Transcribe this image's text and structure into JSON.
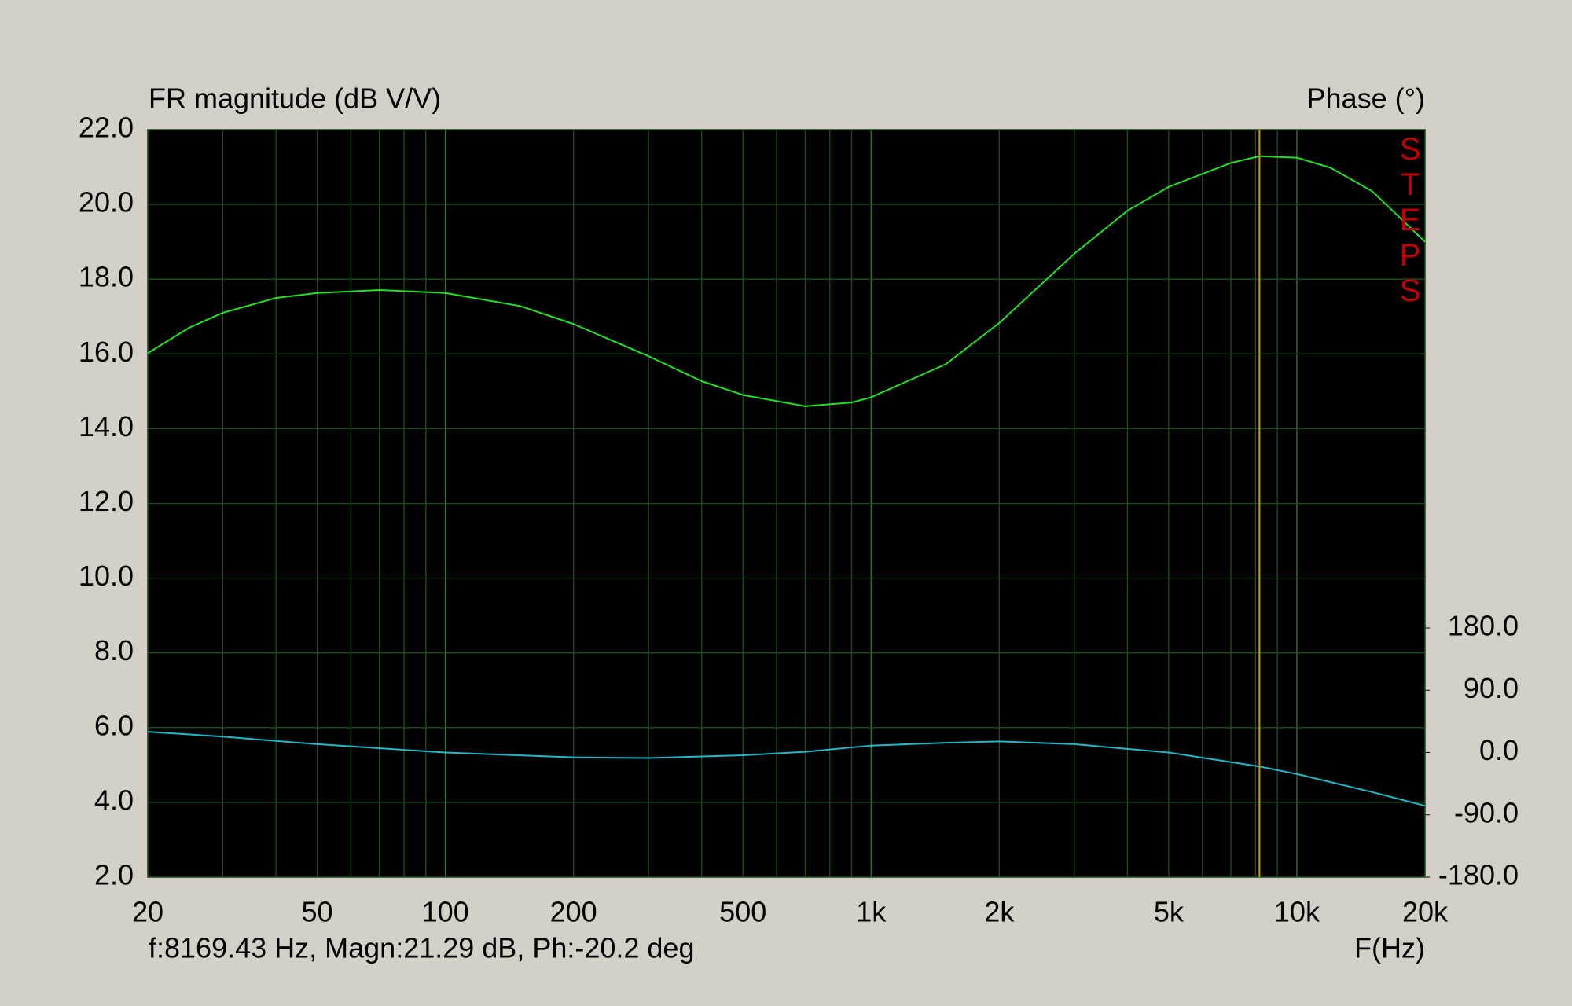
{
  "chart_data": {
    "type": "line",
    "y_label": "FR magnitude (dB V/V)",
    "y2_label": "Phase (°)",
    "x_label": "F(Hz)",
    "cursor_text": "f:8169.43 Hz, Magn:21.29 dB, Ph:-20.2 deg",
    "cursor_x": 8169.43,
    "cursor_color": "#c8a000",
    "badge": "STEPS",
    "x_log": true,
    "grid": true,
    "xlim": [
      20,
      20000
    ],
    "xticks": [
      20,
      50,
      100,
      200,
      500,
      {
        "value": 1000,
        "label": "1k"
      },
      {
        "value": 2000,
        "label": "2k"
      },
      {
        "value": 5000,
        "label": "5k"
      },
      {
        "value": 10000,
        "label": "10k"
      },
      {
        "value": 20000,
        "label": "20k"
      }
    ],
    "xgrid_minor": [
      30,
      40,
      60,
      70,
      80,
      90,
      300,
      400,
      600,
      700,
      800,
      900,
      3000,
      4000,
      6000,
      7000,
      8000,
      9000
    ],
    "ylim": [
      2,
      22
    ],
    "yticks": [
      {
        "value": 2,
        "label": "2.0"
      },
      {
        "value": 4,
        "label": "4.0"
      },
      {
        "value": 6,
        "label": "6.0"
      },
      {
        "value": 8,
        "label": "8.0"
      },
      {
        "value": 10,
        "label": "10.0"
      },
      {
        "value": 12,
        "label": "12.0"
      },
      {
        "value": 14,
        "label": "14.0"
      },
      {
        "value": 16,
        "label": "16.0"
      },
      {
        "value": 18,
        "label": "18.0"
      },
      {
        "value": 20,
        "label": "20.0"
      },
      {
        "value": 22,
        "label": "22.0"
      }
    ],
    "y2lim": [
      -180,
      900
    ],
    "y2ticks": [
      {
        "value": -180,
        "label": "-180.0"
      },
      {
        "value": -90,
        "label": "-90.0"
      },
      {
        "value": 0,
        "label": "0.0"
      },
      {
        "value": 90,
        "label": "90.0"
      },
      {
        "value": 180,
        "label": "180.0"
      }
    ],
    "series": [
      {
        "name": "FR magnitude",
        "color": "#22e022",
        "x": [
          20,
          25,
          30,
          40,
          50,
          70,
          100,
          150,
          200,
          300,
          400,
          500,
          700,
          900,
          1000,
          1500,
          2000,
          3000,
          4000,
          5000,
          7000,
          8169.43,
          10000,
          12000,
          15000,
          20000
        ],
        "values": [
          16.02,
          16.7,
          17.1,
          17.5,
          17.63,
          17.71,
          17.63,
          17.28,
          16.8,
          15.94,
          15.27,
          14.9,
          14.6,
          14.7,
          14.84,
          15.73,
          16.83,
          18.68,
          19.83,
          20.47,
          21.11,
          21.29,
          21.25,
          20.98,
          20.36,
          19.0
        ]
      },
      {
        "name": "Phase",
        "color": "#20b8c8",
        "axis": "y2",
        "x": [
          20,
          30,
          50,
          100,
          200,
          300,
          500,
          700,
          1000,
          1500,
          2000,
          3000,
          5000,
          8169.43,
          10000,
          15000,
          20000
        ],
        "values": [
          30,
          23,
          12,
          0,
          -7,
          -8,
          -4,
          1,
          10,
          14,
          16,
          12,
          0,
          -20.2,
          -31,
          -57,
          -77
        ]
      }
    ]
  }
}
